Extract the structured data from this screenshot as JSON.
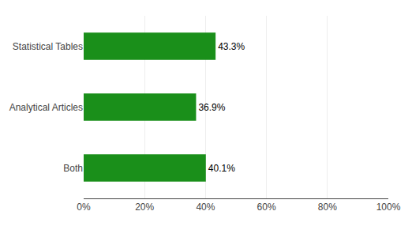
{
  "chart_data": {
    "type": "bar",
    "orientation": "horizontal",
    "categories": [
      "Both",
      "Analytical Articles",
      "Statistical Tables"
    ],
    "values": [
      40.1,
      36.9,
      43.3
    ],
    "value_labels": [
      "40.1%",
      "36.9%",
      "43.3%"
    ],
    "data_labels": true,
    "color": "#1a8f1a",
    "xlim": [
      0,
      100
    ],
    "xticks": [
      {
        "value": 0,
        "label": "0%"
      },
      {
        "value": 20,
        "label": "20%"
      },
      {
        "value": 40,
        "label": "40%"
      },
      {
        "value": 60,
        "label": "60%"
      },
      {
        "value": 80,
        "label": "80%"
      },
      {
        "value": 100,
        "label": "100%"
      }
    ],
    "grid": true
  }
}
